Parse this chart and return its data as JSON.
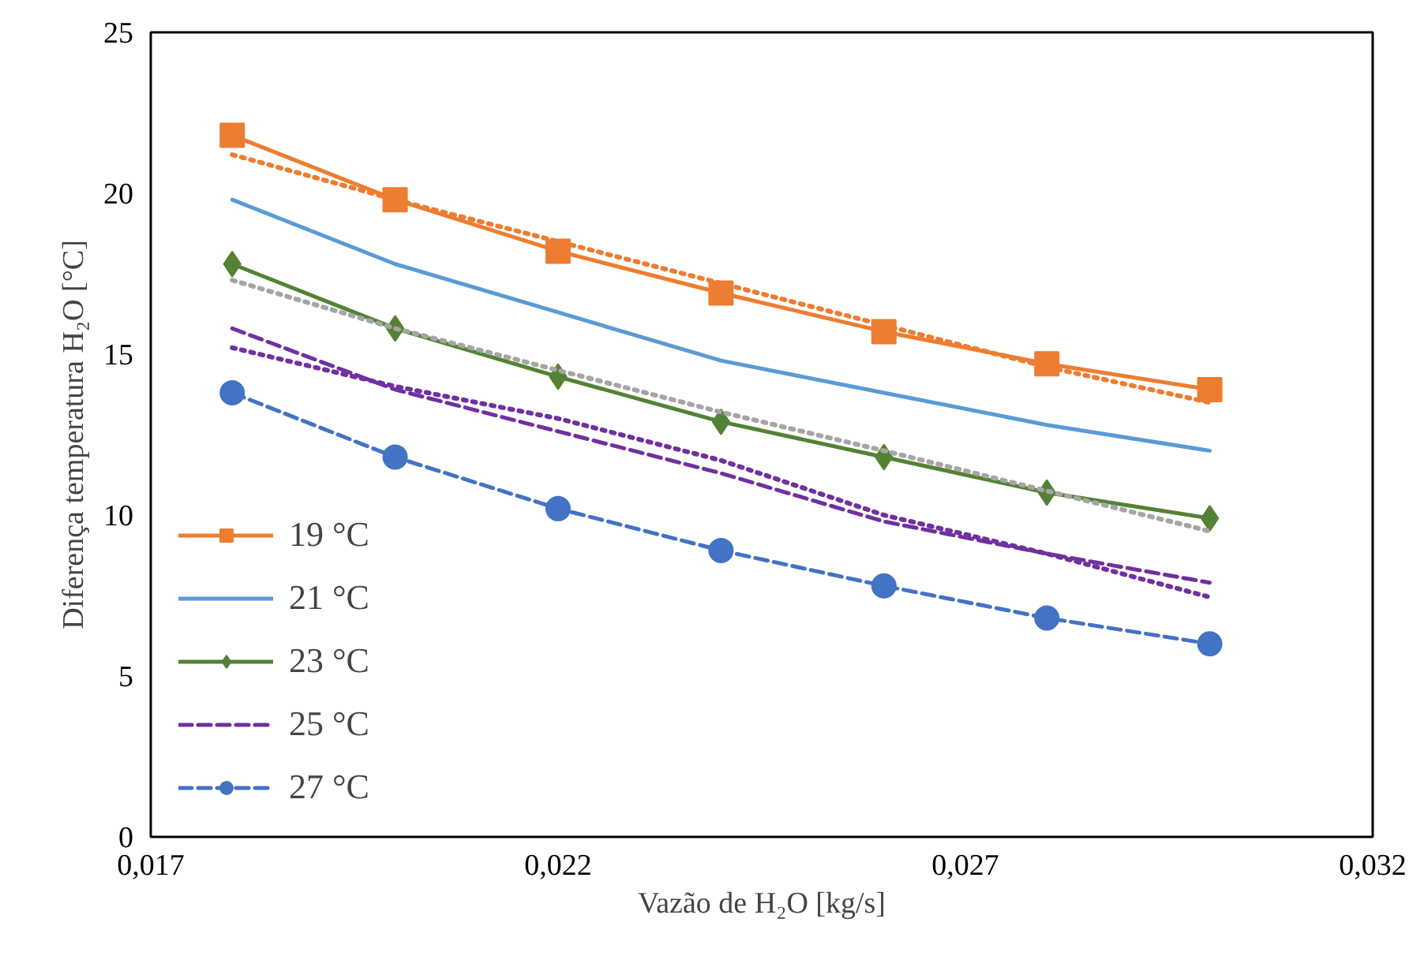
{
  "chart_data": {
    "type": "line",
    "xlabel": "Vazão de H₂O [kg/s]",
    "ylabel": "Diferença temperatura H₂O [°C]",
    "x": [
      0.018,
      0.02,
      0.022,
      0.024,
      0.026,
      0.028,
      0.03
    ],
    "series": [
      {
        "name": "19 °C",
        "color": "#ed7d31",
        "marker": "square",
        "line_style": "solid",
        "values": [
          21.8,
          19.8,
          18.2,
          16.9,
          15.7,
          14.7,
          13.9
        ]
      },
      {
        "name": "21 °C",
        "color": "#5b9bd5",
        "marker": "none",
        "line_style": "solid",
        "values": [
          19.8,
          17.8,
          16.3,
          14.8,
          13.8,
          12.8,
          12.0
        ]
      },
      {
        "name": "23 °C",
        "color": "#548235",
        "marker": "diamond",
        "line_style": "solid",
        "values": [
          17.8,
          15.8,
          14.3,
          12.9,
          11.8,
          10.7,
          9.9
        ]
      },
      {
        "name": "25 °C",
        "color": "#7030a0",
        "marker": "none",
        "line_style": "dashed",
        "values": [
          15.8,
          13.9,
          12.6,
          11.3,
          9.8,
          8.8,
          7.9
        ]
      },
      {
        "name": "27 °C",
        "color": "#4472c4",
        "marker": "circle",
        "line_style": "dashed",
        "values": [
          13.8,
          11.8,
          10.2,
          8.9,
          7.8,
          6.8,
          6.0
        ]
      },
      {
        "color": "#ed7d31",
        "marker": "none",
        "line_style": "dotted",
        "values": [
          21.2,
          19.8,
          18.5,
          17.2,
          15.9,
          14.6,
          13.5
        ]
      },
      {
        "color": "#a5a5a5",
        "marker": "none",
        "line_style": "dotted",
        "values": [
          17.3,
          15.8,
          14.5,
          13.2,
          12.0,
          10.75,
          9.5
        ]
      },
      {
        "color": "#7030a0",
        "marker": "none",
        "line_style": "dotted",
        "values": [
          15.2,
          14.0,
          13.0,
          11.7,
          10.0,
          8.8,
          7.45
        ]
      }
    ],
    "xlim": [
      0.017,
      0.032
    ],
    "xticks": [
      {
        "value": 0.017,
        "label": "0,017"
      },
      {
        "value": 0.022,
        "label": "0,022"
      },
      {
        "value": 0.027,
        "label": "0,027"
      },
      {
        "value": 0.032,
        "label": "0,032"
      }
    ],
    "ylim": [
      0,
      25
    ],
    "yticks": [
      0,
      5,
      10,
      15,
      20,
      25
    ],
    "grid": false,
    "legend": "bottom left"
  }
}
